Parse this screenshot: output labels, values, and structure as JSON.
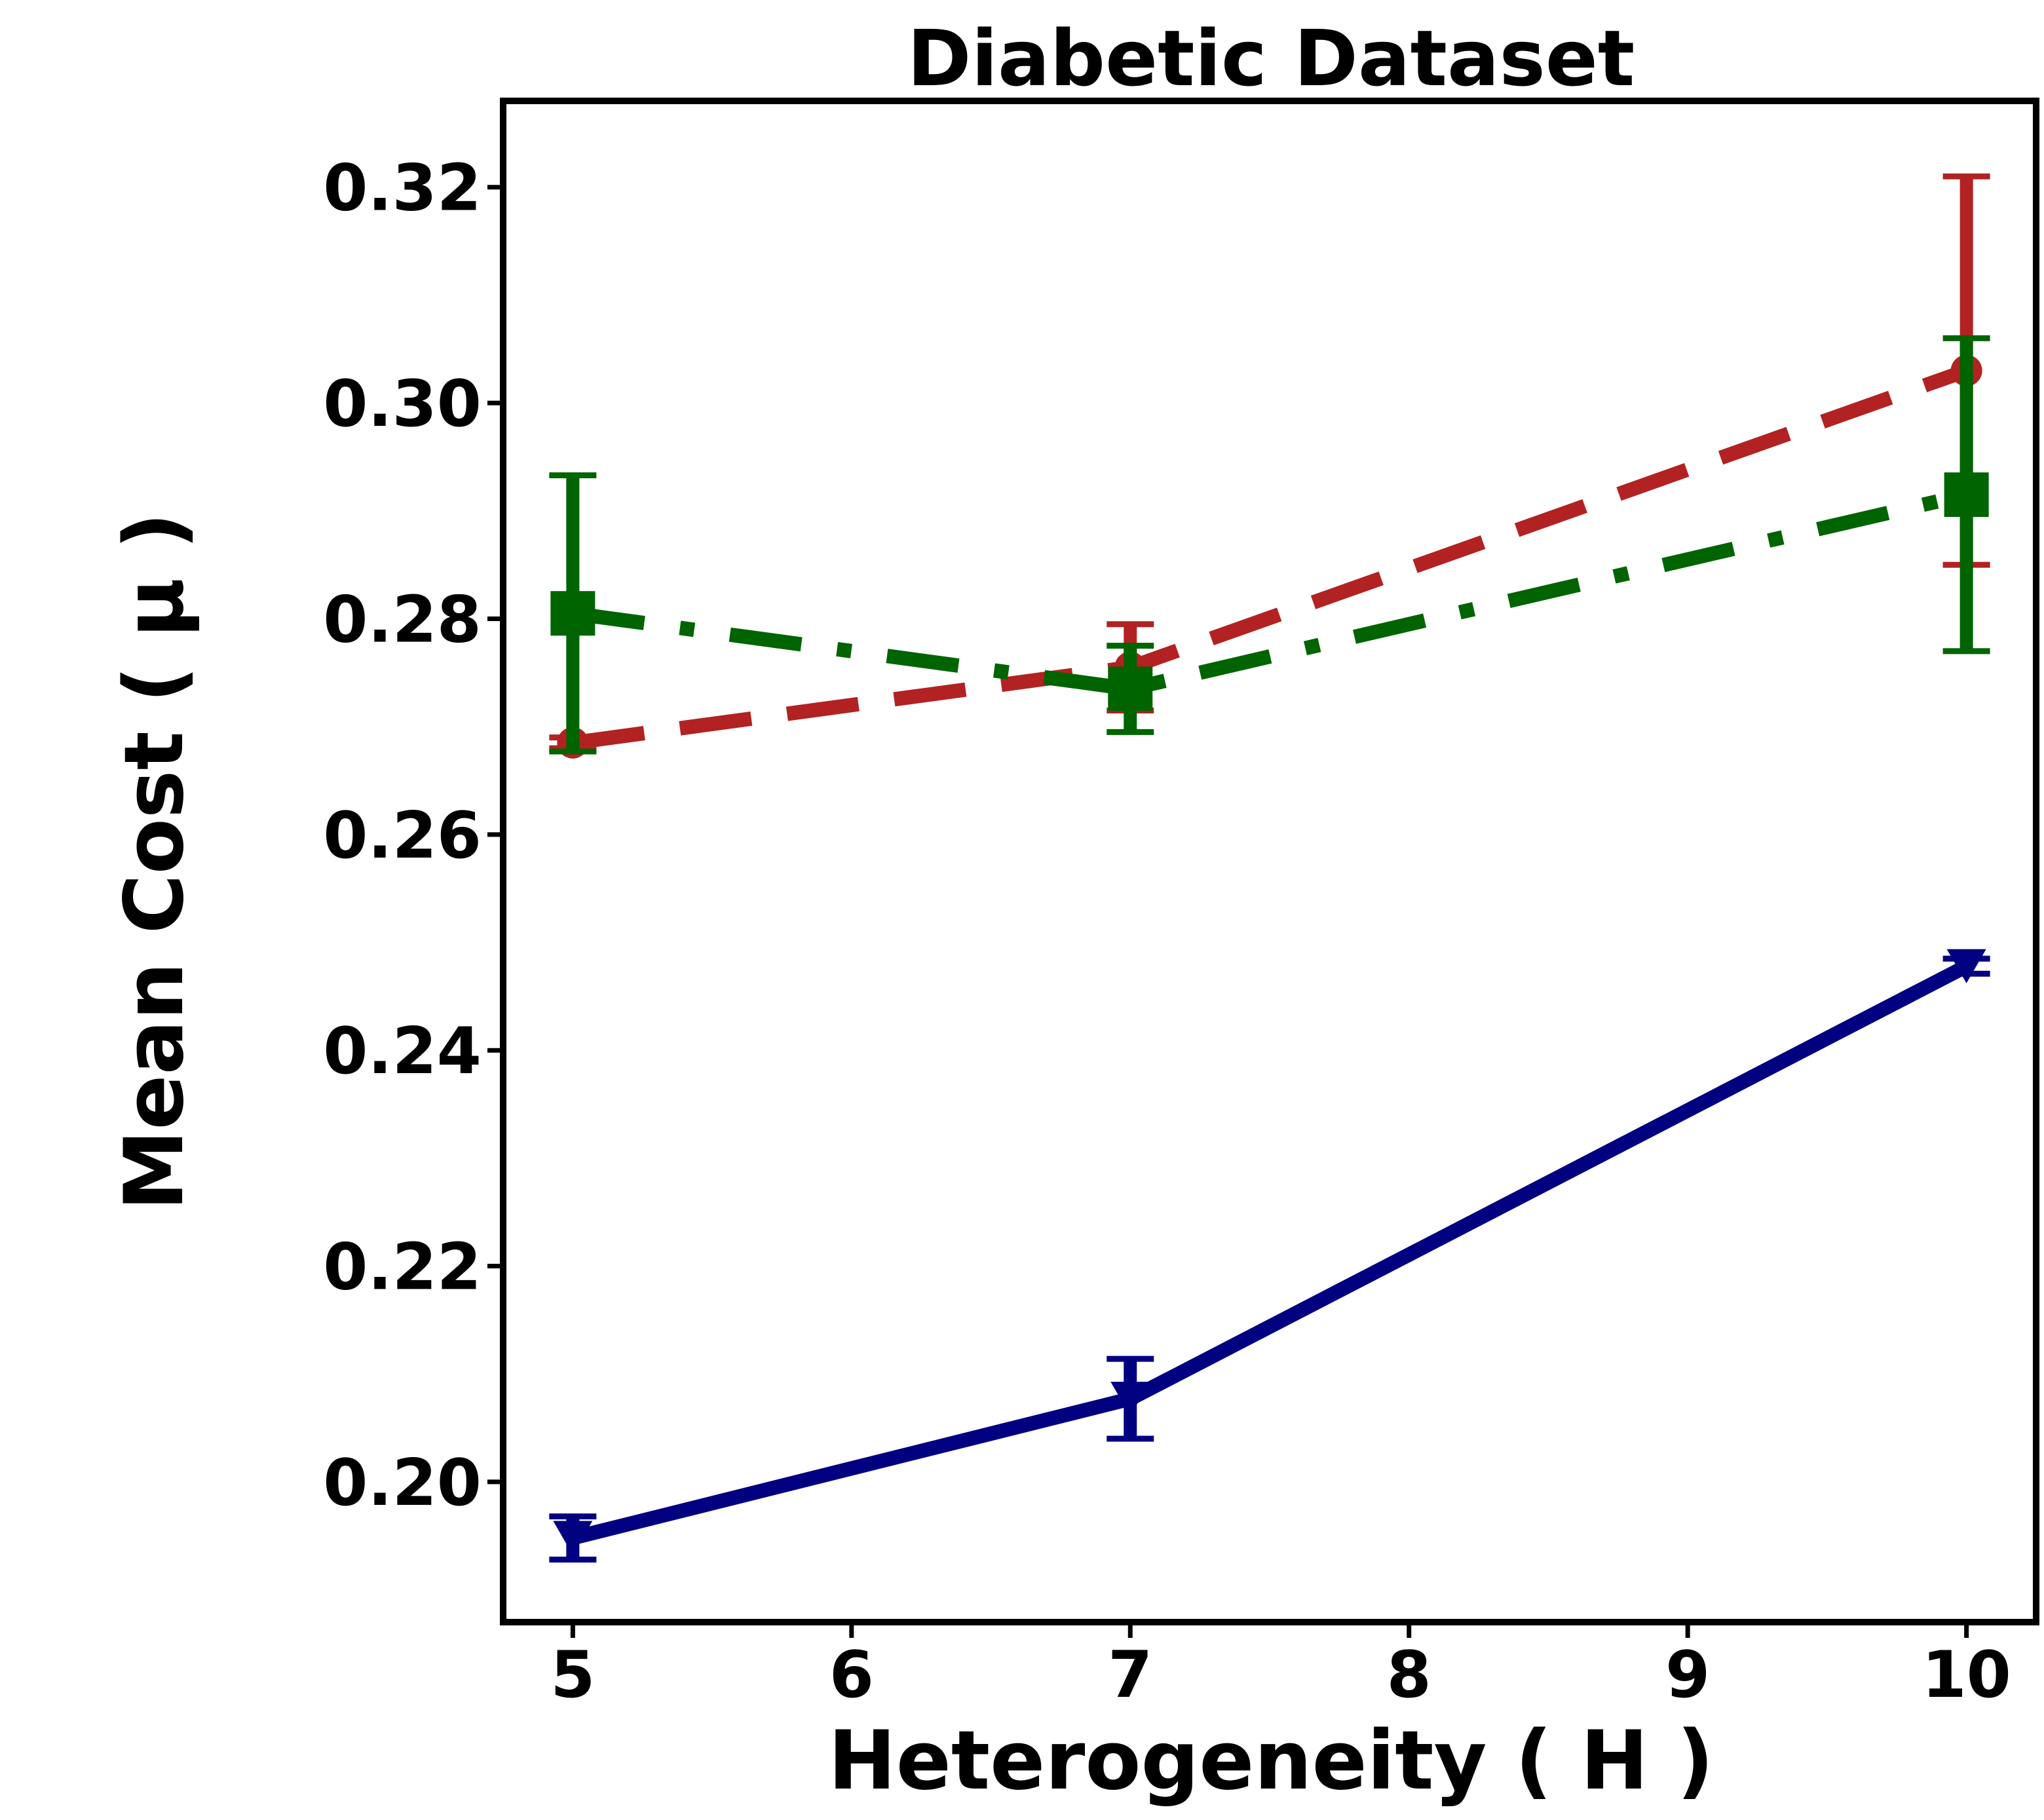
{
  "chart_data": {
    "type": "line",
    "title": "Diabetic Dataset",
    "xlabel": "Heterogeneity ( H )",
    "ylabel": "Mean Cost ( μ )",
    "xlim": [
      4.75,
      10.25
    ],
    "ylim": [
      0.187,
      0.328
    ],
    "xticks": [
      5,
      6,
      7,
      8,
      9,
      10
    ],
    "xtick_labels": [
      "5",
      "6",
      "7",
      "8",
      "9",
      "10"
    ],
    "yticks": [
      0.2,
      0.22,
      0.24,
      0.26,
      0.28,
      0.3,
      0.32
    ],
    "ytick_labels": [
      "0.20",
      "0.22",
      "0.24",
      "0.26",
      "0.28",
      "0.30",
      "0.32"
    ],
    "grid": false,
    "series": [
      {
        "name": "series-red",
        "color": "#b22222",
        "linestyle": "dashed",
        "marker": "circle",
        "x": [
          5,
          7,
          10
        ],
        "y": [
          0.2685,
          0.2755,
          0.303
        ],
        "err": [
          0.0005,
          0.004,
          0.018
        ]
      },
      {
        "name": "series-green",
        "color": "#006400",
        "linestyle": "dashdot",
        "marker": "square",
        "x": [
          5,
          7,
          10
        ],
        "y": [
          0.2805,
          0.2735,
          0.2915
        ],
        "err": [
          0.0128,
          0.004,
          0.0145
        ]
      },
      {
        "name": "series-navy",
        "color": "#000080",
        "linestyle": "solid",
        "marker": "triangle-down",
        "x": [
          5,
          7,
          10
        ],
        "y": [
          0.1948,
          0.2077,
          0.2478
        ],
        "err": [
          0.002,
          0.0037,
          0.0007
        ]
      }
    ]
  }
}
